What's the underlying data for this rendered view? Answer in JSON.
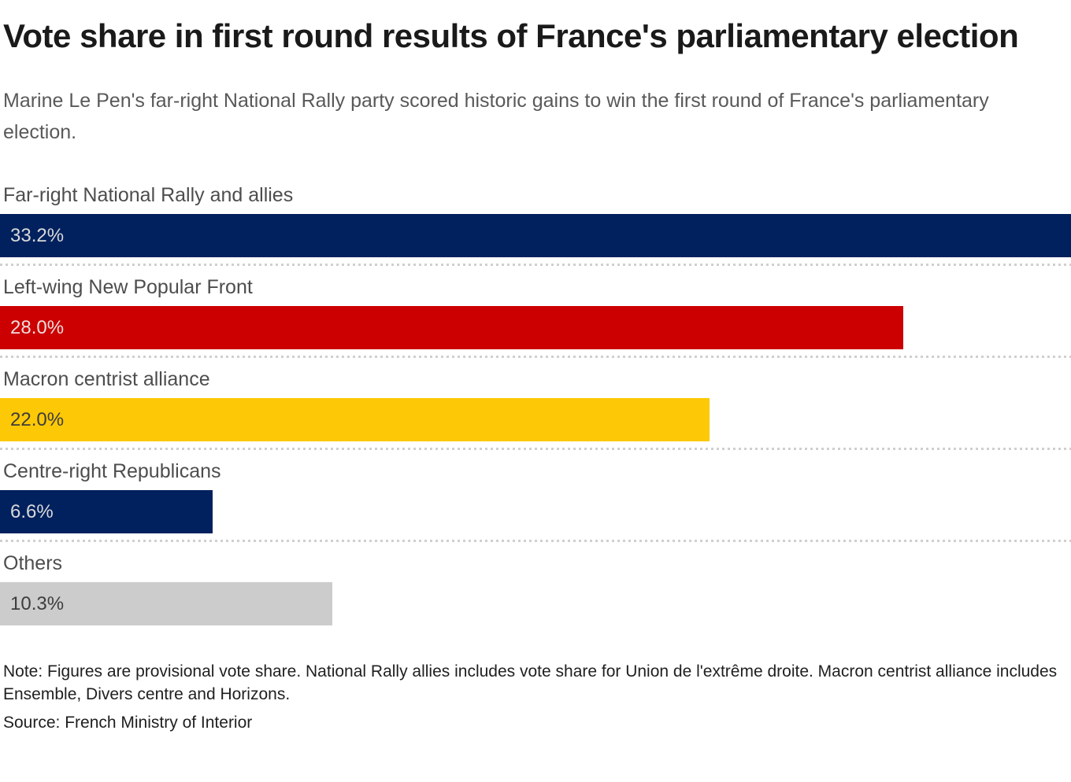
{
  "header": {
    "title": "Vote share in first round results of France's parliamentary election",
    "subtitle": "Marine Le Pen's far-right National Rally party scored historic gains to win the first round of France's parliamentary election."
  },
  "chart_data": {
    "type": "bar",
    "orientation": "horizontal",
    "title": "Vote share in first round results of France's parliamentary election",
    "xlabel": "",
    "ylabel": "",
    "value_unit": "%",
    "scale_max": 33.2,
    "grid": false,
    "legend": "none",
    "categories": [
      "Far-right National Rally and allies",
      "Left-wing New Popular Front",
      "Macron centrist alliance",
      "Centre-right Republicans",
      "Others"
    ],
    "values": [
      33.2,
      28.0,
      22.0,
      6.6,
      10.3
    ],
    "value_labels": [
      "33.2%",
      "28.0%",
      "22.0%",
      "6.6%",
      "10.3%"
    ],
    "bar_colors": [
      "#01215e",
      "#cc0000",
      "#fdc806",
      "#01215e",
      "#cccccc"
    ],
    "value_label_colors": [
      "#d9d9d9",
      "#efdede",
      "#3d3d3d",
      "#d9d9d9",
      "#3d3d3d"
    ]
  },
  "colors": {
    "navy": "#01215e",
    "red": "#cc0000",
    "yellow": "#fdc806",
    "gray": "#cccccc",
    "separator": "#cfcfcf"
  },
  "footer": {
    "note": "Note: Figures are provisional vote share. National Rally allies includes vote share for Union de l'extrême droite. Macron centrist alliance includes Ensemble, Divers centre and Horizons.",
    "source": "Source: French Ministry of Interior"
  }
}
